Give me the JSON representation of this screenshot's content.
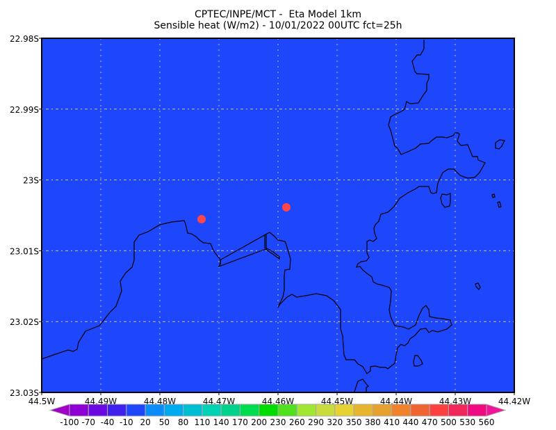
{
  "title": {
    "line1": "CPTEC/INPE/MCT -  Eta Model 1km",
    "line2": "Sensible heat (W/m2) - 10/01/2022 00UTC fct=25h"
  },
  "map": {
    "field_color": "#1e46fa",
    "point_color": "#ff4646",
    "lat_labels": [
      "22.98S",
      "22.99S",
      "23S",
      "23.01S",
      "23.02S",
      "23.03S"
    ],
    "lon_labels": [
      "44.5W",
      "44.49W",
      "44.48W",
      "44.47W",
      "44.46W",
      "44.45W",
      "44.44W",
      "44.43W",
      "44.42W"
    ],
    "gridlines": true
  },
  "colorbar": {
    "labels": [
      "-100",
      "-70",
      "-40",
      "-10",
      "20",
      "50",
      "80",
      "110",
      "140",
      "170",
      "200",
      "230",
      "260",
      "290",
      "320",
      "350",
      "380",
      "410",
      "440",
      "470",
      "500",
      "530",
      "560"
    ],
    "colors": [
      "#8c00d4",
      "#6a0ae0",
      "#4020ee",
      "#1e46fa",
      "#0a8cfa",
      "#00aaf0",
      "#00bed2",
      "#00d2b4",
      "#00d28c",
      "#00dc50",
      "#00dc00",
      "#50e01e",
      "#a0e632",
      "#c8dc3c",
      "#e6d232",
      "#e6b42d",
      "#e6a02d",
      "#f0822d",
      "#f06432",
      "#ff4040",
      "#f0285a",
      "#f00a82"
    ],
    "low_color": "#a000c8",
    "high_color": "#f0149a"
  }
}
